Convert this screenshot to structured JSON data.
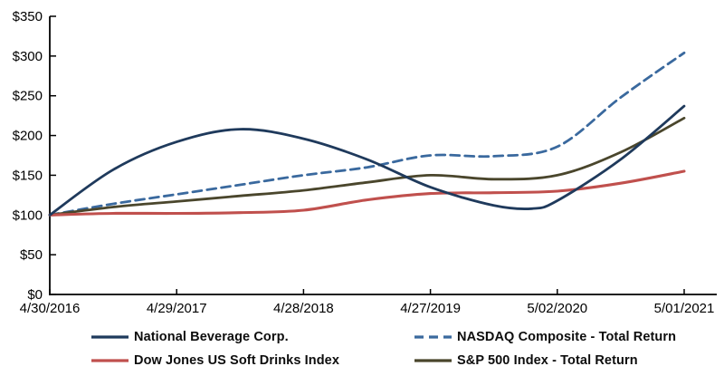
{
  "chart": {
    "background": "#ffffff",
    "axis_color": "#000000",
    "tick_label_color": "#000000",
    "axis_font_size": 15
  },
  "chart_data": {
    "type": "line",
    "title": "",
    "xlabel": "",
    "ylabel": "",
    "ylim": [
      0,
      350
    ],
    "ytick_step": 50,
    "ytick_labels": [
      "$0",
      "$50",
      "$100",
      "$150",
      "$200",
      "$250",
      "$300",
      "$350"
    ],
    "categories": [
      "4/30/2016",
      "4/29/2017",
      "4/28/2018",
      "4/27/2019",
      "5/02/2020",
      "5/01/2021"
    ],
    "grid": false,
    "legend_position": "bottom",
    "line_style": "smoothed",
    "series": [
      {
        "name": "National Beverage Corp.",
        "color": "#1f3a5c",
        "dash": "solid",
        "width": 2.8,
        "values": [
          100,
          192,
          196,
          135,
          118,
          237
        ],
        "samples": [
          [
            0,
            100
          ],
          [
            0.5,
            157
          ],
          [
            1,
            192
          ],
          [
            1.5,
            208
          ],
          [
            2,
            196
          ],
          [
            2.5,
            170
          ],
          [
            3,
            135
          ],
          [
            3.5,
            112
          ],
          [
            3.8,
            108
          ],
          [
            4,
            118
          ],
          [
            4.5,
            170
          ],
          [
            5,
            237
          ]
        ]
      },
      {
        "name": "NASDAQ Composite - Total Return",
        "color": "#3a699e",
        "dash": "dashed",
        "width": 2.8,
        "values": [
          100,
          126,
          150,
          175,
          186,
          304
        ],
        "samples": [
          [
            0,
            100
          ],
          [
            0.5,
            114
          ],
          [
            1,
            126
          ],
          [
            1.5,
            138
          ],
          [
            2,
            150
          ],
          [
            2.5,
            160
          ],
          [
            3,
            175
          ],
          [
            3.5,
            174
          ],
          [
            4,
            186
          ],
          [
            4.5,
            248
          ],
          [
            5,
            304
          ]
        ]
      },
      {
        "name": "Dow Jones US Soft Drinks Index",
        "color": "#c0504d",
        "dash": "solid",
        "width": 3.1,
        "values": [
          100,
          102,
          106,
          127,
          130,
          155
        ],
        "samples": [
          [
            0,
            100
          ],
          [
            0.5,
            102
          ],
          [
            1,
            102
          ],
          [
            1.5,
            103
          ],
          [
            2,
            106
          ],
          [
            2.5,
            119
          ],
          [
            3,
            127
          ],
          [
            3.5,
            128
          ],
          [
            4,
            130
          ],
          [
            4.5,
            140
          ],
          [
            5,
            155
          ]
        ]
      },
      {
        "name": "S&P 500 Index - Total Return",
        "color": "#4a462c",
        "dash": "solid",
        "width": 2.8,
        "values": [
          100,
          117,
          131,
          150,
          150,
          222
        ],
        "samples": [
          [
            0,
            100
          ],
          [
            0.5,
            110
          ],
          [
            1,
            117
          ],
          [
            1.5,
            124
          ],
          [
            2,
            131
          ],
          [
            2.5,
            141
          ],
          [
            3,
            150
          ],
          [
            3.5,
            145
          ],
          [
            4,
            150
          ],
          [
            4.5,
            179
          ],
          [
            5,
            222
          ]
        ]
      }
    ]
  },
  "legend": {
    "rows": 2,
    "columns": 2,
    "items": [
      {
        "series_index": 0,
        "col": 0,
        "row": 0
      },
      {
        "series_index": 1,
        "col": 1,
        "row": 0
      },
      {
        "series_index": 2,
        "col": 0,
        "row": 1
      },
      {
        "series_index": 3,
        "col": 1,
        "row": 1
      }
    ]
  }
}
